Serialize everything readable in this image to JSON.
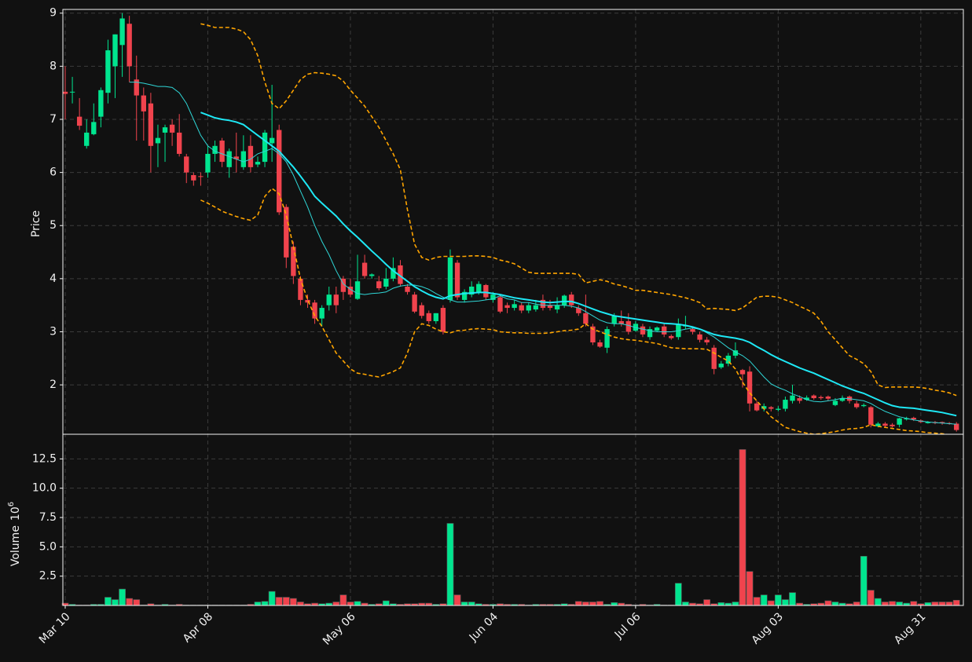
{
  "chart_data": {
    "type": "candlestick",
    "categories": [
      "Mar 10",
      null,
      null,
      null,
      null,
      null,
      null,
      null,
      null,
      null,
      null,
      null,
      null,
      null,
      null,
      null,
      null,
      null,
      null,
      null,
      "Apr 08",
      null,
      null,
      null,
      null,
      null,
      null,
      null,
      null,
      null,
      null,
      null,
      null,
      null,
      null,
      null,
      null,
      null,
      null,
      null,
      "May 06",
      null,
      null,
      null,
      null,
      null,
      null,
      null,
      null,
      null,
      null,
      null,
      null,
      null,
      null,
      null,
      null,
      null,
      null,
      null,
      "Jun 04",
      null,
      null,
      null,
      null,
      null,
      null,
      null,
      null,
      null,
      null,
      null,
      null,
      null,
      null,
      null,
      null,
      null,
      null,
      null,
      "Jul 06",
      null,
      null,
      null,
      null,
      null,
      null,
      null,
      null,
      null,
      null,
      null,
      null,
      null,
      null,
      null,
      null,
      null,
      null,
      null,
      "Aug 03",
      null,
      null,
      null,
      null,
      null,
      null,
      null,
      null,
      null,
      null,
      null,
      null,
      null,
      null,
      null,
      null,
      null,
      null,
      null,
      "Aug 31",
      null,
      null,
      null,
      null,
      null
    ],
    "open": [
      7.52,
      7.52,
      7.05,
      6.5,
      6.72,
      7.05,
      7.5,
      8.0,
      8.4,
      8.8,
      7.75,
      7.45,
      7.3,
      6.55,
      6.75,
      6.9,
      6.75,
      6.3,
      5.95,
      5.93,
      6.0,
      6.35,
      6.6,
      6.1,
      6.3,
      6.1,
      6.5,
      6.15,
      6.2,
      6.55,
      6.8,
      5.35,
      4.6,
      4.0,
      3.6,
      3.55,
      3.25,
      3.5,
      3.7,
      4.0,
      3.85,
      3.62,
      4.3,
      4.05,
      3.95,
      3.85,
      4.0,
      4.25,
      3.85,
      3.7,
      3.5,
      3.35,
      3.2,
      3.45,
      3.6,
      4.3,
      3.6,
      3.7,
      3.75,
      3.88,
      3.6,
      3.65,
      3.5,
      3.45,
      3.5,
      3.4,
      3.42,
      3.6,
      3.5,
      3.42,
      3.5,
      3.7,
      3.45,
      3.35,
      3.1,
      2.8,
      2.7,
      3.15,
      3.2,
      3.2,
      3.02,
      3.1,
      2.9,
      3.02,
      3.1,
      2.92,
      2.9,
      3.1,
      3.05,
      2.95,
      2.85,
      2.7,
      2.33,
      2.4,
      2.55,
      2.28,
      2.25,
      1.65,
      1.55,
      1.58,
      1.53,
      1.55,
      1.7,
      1.75,
      1.72,
      1.8,
      1.77,
      1.78,
      1.62,
      1.7,
      1.78,
      1.65,
      1.6,
      1.58,
      1.22,
      1.27,
      1.25,
      1.25,
      1.35,
      1.38,
      1.33,
      1.28,
      1.3,
      1.3,
      1.28,
      1.27
    ],
    "high": [
      8.0,
      7.8,
      7.4,
      7.0,
      7.3,
      7.6,
      8.5,
      8.6,
      9.0,
      8.95,
      8.2,
      7.6,
      7.5,
      6.9,
      6.9,
      7.0,
      7.1,
      6.35,
      6.0,
      6.0,
      6.5,
      6.6,
      6.65,
      6.45,
      6.75,
      6.7,
      6.7,
      6.3,
      6.8,
      7.65,
      6.9,
      5.4,
      4.7,
      4.05,
      3.7,
      3.6,
      3.5,
      3.85,
      3.85,
      4.05,
      4.0,
      4.45,
      4.45,
      4.1,
      4.05,
      4.2,
      4.4,
      4.35,
      3.9,
      3.75,
      3.55,
      3.4,
      3.35,
      3.5,
      4.55,
      4.35,
      3.8,
      3.95,
      3.95,
      3.9,
      3.75,
      3.7,
      3.55,
      3.6,
      3.55,
      3.55,
      3.6,
      3.7,
      3.6,
      3.65,
      3.7,
      3.75,
      3.5,
      3.7,
      3.15,
      2.85,
      3.1,
      3.35,
      3.4,
      3.35,
      3.2,
      3.15,
      3.1,
      3.1,
      3.15,
      2.95,
      3.25,
      3.3,
      3.1,
      3.0,
      2.9,
      2.75,
      2.45,
      2.6,
      2.8,
      2.3,
      2.35,
      1.7,
      1.65,
      1.6,
      1.6,
      1.78,
      2.0,
      1.8,
      1.8,
      1.82,
      1.8,
      1.8,
      1.75,
      1.8,
      1.8,
      1.7,
      1.65,
      1.6,
      1.3,
      1.3,
      1.28,
      1.38,
      1.4,
      1.4,
      1.35,
      1.32,
      1.32,
      1.31,
      1.3,
      1.3
    ],
    "low": [
      7.0,
      7.3,
      6.8,
      6.45,
      6.7,
      6.85,
      7.3,
      7.4,
      7.8,
      7.7,
      6.6,
      6.6,
      6.0,
      6.1,
      6.2,
      6.5,
      6.3,
      5.8,
      5.75,
      5.75,
      5.9,
      6.2,
      6.1,
      5.9,
      6.0,
      6.05,
      6.0,
      6.1,
      6.1,
      6.2,
      5.2,
      4.2,
      3.9,
      3.5,
      3.45,
      3.15,
      3.1,
      3.4,
      3.35,
      3.6,
      3.65,
      3.6,
      4.0,
      4.0,
      3.78,
      3.8,
      3.95,
      3.85,
      3.7,
      3.35,
      3.25,
      3.15,
      3.15,
      2.95,
      3.55,
      3.6,
      3.55,
      3.65,
      3.7,
      3.6,
      3.55,
      3.35,
      3.35,
      3.4,
      3.35,
      3.35,
      3.38,
      3.4,
      3.4,
      3.35,
      3.45,
      3.45,
      3.3,
      3.1,
      2.75,
      2.7,
      2.6,
      3.1,
      3.1,
      2.95,
      3.0,
      2.9,
      2.85,
      3.0,
      2.9,
      2.85,
      2.85,
      3.05,
      2.95,
      2.8,
      2.75,
      2.2,
      2.3,
      2.35,
      2.5,
      1.95,
      1.5,
      1.5,
      1.5,
      1.5,
      1.5,
      1.5,
      1.65,
      1.65,
      1.7,
      1.72,
      1.72,
      1.7,
      1.6,
      1.68,
      1.65,
      1.55,
      1.58,
      1.2,
      1.2,
      1.2,
      1.2,
      1.2,
      1.33,
      1.32,
      1.28,
      1.27,
      1.26,
      1.25,
      1.25,
      1.12
    ],
    "close": [
      7.48,
      7.52,
      6.88,
      6.75,
      6.95,
      7.55,
      8.3,
      8.6,
      8.9,
      8.0,
      7.45,
      7.15,
      6.5,
      6.65,
      6.85,
      6.75,
      6.35,
      6.0,
      5.85,
      5.92,
      6.35,
      6.5,
      6.2,
      6.4,
      6.25,
      6.4,
      6.1,
      6.2,
      6.75,
      6.65,
      5.25,
      4.4,
      4.05,
      3.6,
      3.55,
      3.25,
      3.45,
      3.7,
      3.5,
      3.75,
      3.7,
      3.95,
      4.05,
      4.08,
      3.82,
      4.0,
      4.2,
      3.9,
      3.75,
      3.38,
      3.3,
      3.2,
      3.35,
      3.0,
      4.4,
      3.65,
      3.75,
      3.85,
      3.9,
      3.65,
      3.7,
      3.38,
      3.45,
      3.52,
      3.4,
      3.5,
      3.5,
      3.45,
      3.45,
      3.5,
      3.68,
      3.5,
      3.35,
      3.15,
      2.8,
      2.72,
      3.05,
      3.3,
      3.15,
      3.0,
      3.15,
      2.95,
      3.05,
      3.08,
      2.95,
      2.88,
      3.15,
      3.12,
      3.0,
      2.85,
      2.8,
      2.3,
      2.4,
      2.55,
      2.65,
      2.2,
      1.65,
      1.52,
      1.6,
      1.55,
      1.55,
      1.72,
      1.8,
      1.7,
      1.76,
      1.75,
      1.75,
      1.74,
      1.7,
      1.75,
      1.7,
      1.58,
      1.62,
      1.25,
      1.27,
      1.23,
      1.22,
      1.37,
      1.37,
      1.35,
      1.3,
      1.3,
      1.28,
      1.28,
      1.27,
      1.15
    ],
    "up_color": "#00e58f",
    "down_color": "#f0434d",
    "ylabel": "Price",
    "ylim": [
      1.07,
      9.07
    ],
    "yticks": [
      2,
      3,
      4,
      5,
      6,
      7,
      8,
      9
    ],
    "grid": true,
    "lines": [
      {
        "color": "#2fd6d6",
        "width": 1,
        "dash": false,
        "values": [
          null,
          null,
          null,
          null,
          null,
          null,
          null,
          null,
          null,
          7.7,
          7.7,
          7.68,
          7.65,
          7.62,
          7.62,
          7.6,
          7.5,
          7.3,
          7.0,
          6.7,
          6.5,
          6.4,
          6.35,
          6.3,
          6.25,
          6.2,
          6.25,
          6.35,
          6.4,
          6.45,
          6.35,
          6.2,
          5.95,
          5.65,
          5.35,
          5.0,
          4.7,
          4.45,
          4.15,
          3.9,
          3.8,
          3.72,
          3.7,
          3.72,
          3.73,
          3.75,
          3.82,
          3.86,
          3.88,
          3.88,
          3.85,
          3.8,
          3.72,
          3.65,
          3.6,
          3.56,
          3.56,
          3.57,
          3.58,
          3.6,
          3.62,
          3.68,
          3.62,
          3.6,
          3.55,
          3.55,
          3.52,
          3.5,
          3.5,
          3.5,
          3.5,
          3.48,
          3.45,
          3.38,
          3.3,
          3.22,
          3.17,
          3.15,
          3.15,
          3.12,
          3.08,
          3.05,
          3.02,
          3.0,
          3.0,
          3.0,
          3.02,
          3.05,
          3.07,
          3.05,
          2.98,
          2.9,
          2.8,
          2.7,
          2.62,
          2.55,
          2.45,
          2.3,
          2.15,
          2.02,
          1.95,
          1.9,
          1.83,
          1.78,
          1.72,
          1.69,
          1.68,
          1.7,
          1.72,
          1.75,
          1.74,
          1.72,
          1.7,
          1.65,
          1.57,
          1.5,
          1.45,
          1.4,
          1.37,
          1.34,
          1.32,
          1.3,
          1.29,
          1.28,
          1.27,
          1.26
        ]
      },
      {
        "color": "#1ee8f5",
        "width": 2,
        "dash": false,
        "values": [
          null,
          null,
          null,
          null,
          null,
          null,
          null,
          null,
          null,
          null,
          null,
          null,
          null,
          null,
          null,
          null,
          null,
          null,
          null,
          7.13,
          7.08,
          7.03,
          7.0,
          6.98,
          6.95,
          6.9,
          6.8,
          6.7,
          6.6,
          6.5,
          6.4,
          6.25,
          6.1,
          5.93,
          5.75,
          5.55,
          5.42,
          5.3,
          5.18,
          5.03,
          4.9,
          4.78,
          4.65,
          4.52,
          4.4,
          4.27,
          4.15,
          4.05,
          3.95,
          3.85,
          3.77,
          3.7,
          3.65,
          3.62,
          3.68,
          3.7,
          3.72,
          3.73,
          3.74,
          3.74,
          3.72,
          3.7,
          3.67,
          3.64,
          3.62,
          3.6,
          3.58,
          3.56,
          3.55,
          3.56,
          3.57,
          3.57,
          3.53,
          3.48,
          3.43,
          3.38,
          3.34,
          3.3,
          3.28,
          3.26,
          3.24,
          3.22,
          3.2,
          3.18,
          3.16,
          3.15,
          3.14,
          3.12,
          3.09,
          3.05,
          3.0,
          2.95,
          2.92,
          2.9,
          2.88,
          2.85,
          2.8,
          2.72,
          2.65,
          2.57,
          2.5,
          2.44,
          2.38,
          2.32,
          2.27,
          2.22,
          2.16,
          2.1,
          2.04,
          1.98,
          1.93,
          1.88,
          1.84,
          1.78,
          1.72,
          1.66,
          1.61,
          1.58,
          1.57,
          1.56,
          1.54,
          1.52,
          1.5,
          1.48,
          1.45,
          1.42
        ]
      },
      {
        "color": "#ffa500",
        "width": 1.6,
        "dash": true,
        "values": [
          null,
          null,
          null,
          null,
          null,
          null,
          null,
          null,
          null,
          null,
          null,
          null,
          null,
          null,
          null,
          null,
          null,
          null,
          null,
          8.8,
          8.77,
          8.73,
          8.73,
          8.73,
          8.7,
          8.65,
          8.5,
          8.2,
          7.7,
          7.3,
          7.2,
          7.35,
          7.55,
          7.75,
          7.85,
          7.88,
          7.87,
          7.85,
          7.82,
          7.72,
          7.55,
          7.4,
          7.25,
          7.05,
          6.85,
          6.6,
          6.35,
          6.05,
          5.3,
          4.65,
          4.4,
          4.35,
          4.4,
          4.42,
          4.42,
          4.42,
          4.42,
          4.43,
          4.43,
          4.42,
          4.4,
          4.35,
          4.32,
          4.28,
          4.2,
          4.12,
          4.1,
          4.1,
          4.1,
          4.1,
          4.1,
          4.1,
          4.08,
          3.92,
          3.95,
          3.98,
          3.95,
          3.9,
          3.87,
          3.83,
          3.78,
          3.78,
          3.76,
          3.74,
          3.72,
          3.7,
          3.67,
          3.64,
          3.6,
          3.55,
          3.43,
          3.44,
          3.43,
          3.42,
          3.4,
          3.45,
          3.55,
          3.65,
          3.67,
          3.67,
          3.65,
          3.6,
          3.55,
          3.48,
          3.42,
          3.35,
          3.2,
          3.0,
          2.85,
          2.7,
          2.55,
          2.48,
          2.4,
          2.25,
          2.0,
          1.95,
          1.96,
          1.96,
          1.96,
          1.96,
          1.95,
          1.93,
          1.9,
          1.88,
          1.85,
          1.8
        ]
      },
      {
        "color": "#ffa500",
        "width": 1.6,
        "dash": true,
        "values": [
          null,
          null,
          null,
          null,
          null,
          null,
          null,
          null,
          null,
          null,
          null,
          null,
          null,
          null,
          null,
          null,
          null,
          null,
          null,
          5.48,
          5.42,
          5.35,
          5.27,
          5.22,
          5.17,
          5.13,
          5.1,
          5.2,
          5.55,
          5.7,
          5.6,
          5.2,
          4.6,
          4.0,
          3.6,
          3.3,
          3.1,
          2.85,
          2.6,
          2.45,
          2.3,
          2.22,
          2.2,
          2.17,
          2.15,
          2.2,
          2.25,
          2.32,
          2.6,
          3.0,
          3.15,
          3.12,
          3.05,
          3.0,
          2.98,
          3.02,
          3.03,
          3.05,
          3.06,
          3.05,
          3.04,
          3.0,
          2.99,
          2.98,
          2.98,
          2.97,
          2.97,
          2.97,
          2.98,
          3.0,
          3.02,
          3.03,
          3.05,
          3.15,
          3.05,
          3.0,
          2.95,
          2.9,
          2.87,
          2.85,
          2.84,
          2.82,
          2.8,
          2.78,
          2.74,
          2.7,
          2.69,
          2.68,
          2.68,
          2.68,
          2.67,
          2.6,
          2.52,
          2.45,
          2.3,
          2.05,
          1.85,
          1.7,
          1.55,
          1.4,
          1.3,
          1.2,
          1.16,
          1.12,
          1.09,
          1.07,
          1.08,
          1.1,
          1.12,
          1.15,
          1.17,
          1.18,
          1.2,
          1.25,
          1.22,
          1.2,
          1.18,
          1.16,
          1.14,
          1.13,
          1.12,
          1.1,
          1.09,
          1.08,
          1.06,
          1.05
        ]
      }
    ],
    "volume": {
      "ylabel": "Volume",
      "scale_base": "10",
      "scale_exp": "6",
      "ylim": [
        0,
        14.6
      ],
      "yticks": [
        2.5,
        {
          "value": 5,
          "label": "5.0"
        },
        7.5,
        {
          "value": 10,
          "label": "10.0"
        },
        12.5
      ],
      "values": [
        0.2,
        0.1,
        0.05,
        0.05,
        0.1,
        0.1,
        0.7,
        0.5,
        1.4,
        0.6,
        0.5,
        0.05,
        0.15,
        0.05,
        0.1,
        0.05,
        0.1,
        0.05,
        0.05,
        0.05,
        0.05,
        0.05,
        0.05,
        0.05,
        0.05,
        0.05,
        0.1,
        0.3,
        0.35,
        1.2,
        0.7,
        0.7,
        0.6,
        0.3,
        0.15,
        0.2,
        0.15,
        0.2,
        0.3,
        0.9,
        0.3,
        0.35,
        0.2,
        0.1,
        0.15,
        0.4,
        0.15,
        0.1,
        0.15,
        0.15,
        0.2,
        0.2,
        0.1,
        0.15,
        7.0,
        0.9,
        0.3,
        0.3,
        0.15,
        0.1,
        0.1,
        0.15,
        0.1,
        0.1,
        0.1,
        0.05,
        0.1,
        0.1,
        0.1,
        0.1,
        0.15,
        0.1,
        0.35,
        0.3,
        0.3,
        0.35,
        0.1,
        0.25,
        0.2,
        0.1,
        0.05,
        0.1,
        0.05,
        0.1,
        0.05,
        0.05,
        1.9,
        0.3,
        0.2,
        0.15,
        0.5,
        0.15,
        0.25,
        0.2,
        0.3,
        13.3,
        2.9,
        0.7,
        0.9,
        0.4,
        0.9,
        0.5,
        1.1,
        0.2,
        0.1,
        0.15,
        0.2,
        0.4,
        0.3,
        0.2,
        0.15,
        0.3,
        4.2,
        1.3,
        0.6,
        0.3,
        0.35,
        0.3,
        0.2,
        0.35,
        0.15,
        0.25,
        0.3,
        0.3,
        0.3,
        0.45
      ]
    }
  }
}
